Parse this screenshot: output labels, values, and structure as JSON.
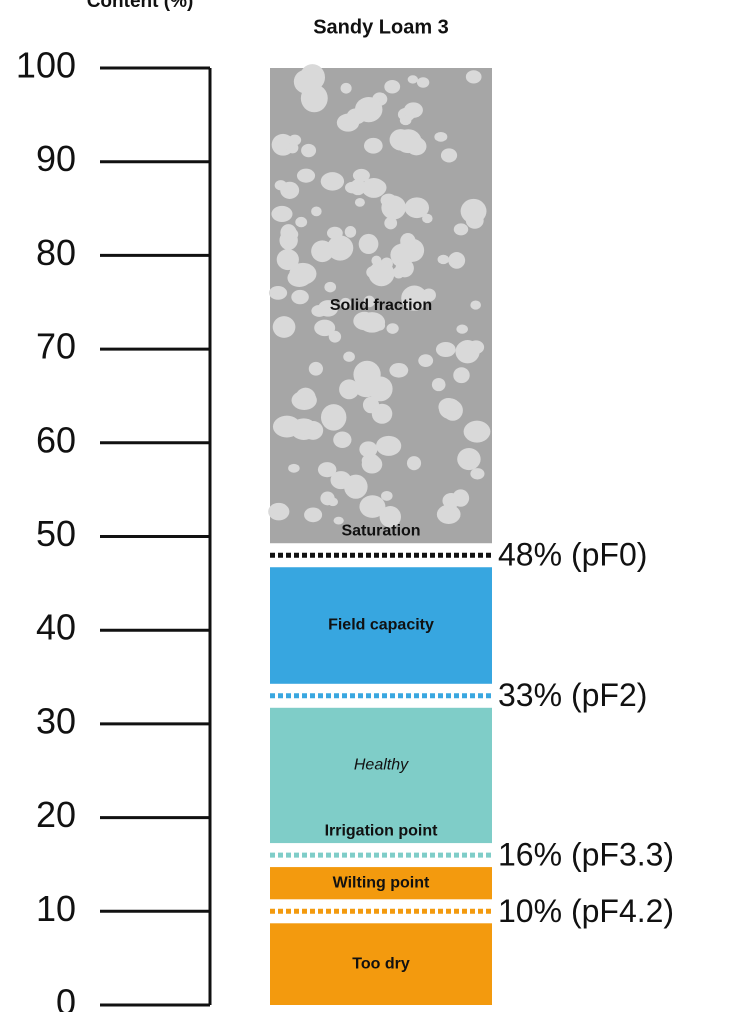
{
  "chart_data": {
    "type": "zones",
    "axis_label": "Content (%)",
    "title": "Sandy Loam 3",
    "ylim": [
      0,
      100
    ],
    "yticks": [
      0,
      10,
      20,
      30,
      40,
      50,
      60,
      70,
      80,
      90,
      100
    ],
    "thresholds": [
      {
        "value": 48,
        "label": "48% (pF0)",
        "color": "#111111"
      },
      {
        "value": 33,
        "label": "33% (pF2)",
        "color": "#3aa7e0"
      },
      {
        "value": 16,
        "label": "16% (pF3.3)",
        "color": "#7fcdc8"
      },
      {
        "value": 10,
        "label": "10% (pF4.2)",
        "color": "#f39a0e"
      }
    ],
    "zones": [
      {
        "name": "Solid fraction",
        "sublabel": "Saturation",
        "color": "#a6a6a6",
        "pattern": "pebbles"
      },
      {
        "name": "Field capacity",
        "color": "#37a6e0"
      },
      {
        "name": "Healthy",
        "sublabel": "Irrigation point",
        "color": "#7fcdc8",
        "style": "italic"
      },
      {
        "name": "Wilting point",
        "color": "#f39a0e"
      },
      {
        "name": "Too dry",
        "color": "#f39a0e"
      }
    ]
  }
}
